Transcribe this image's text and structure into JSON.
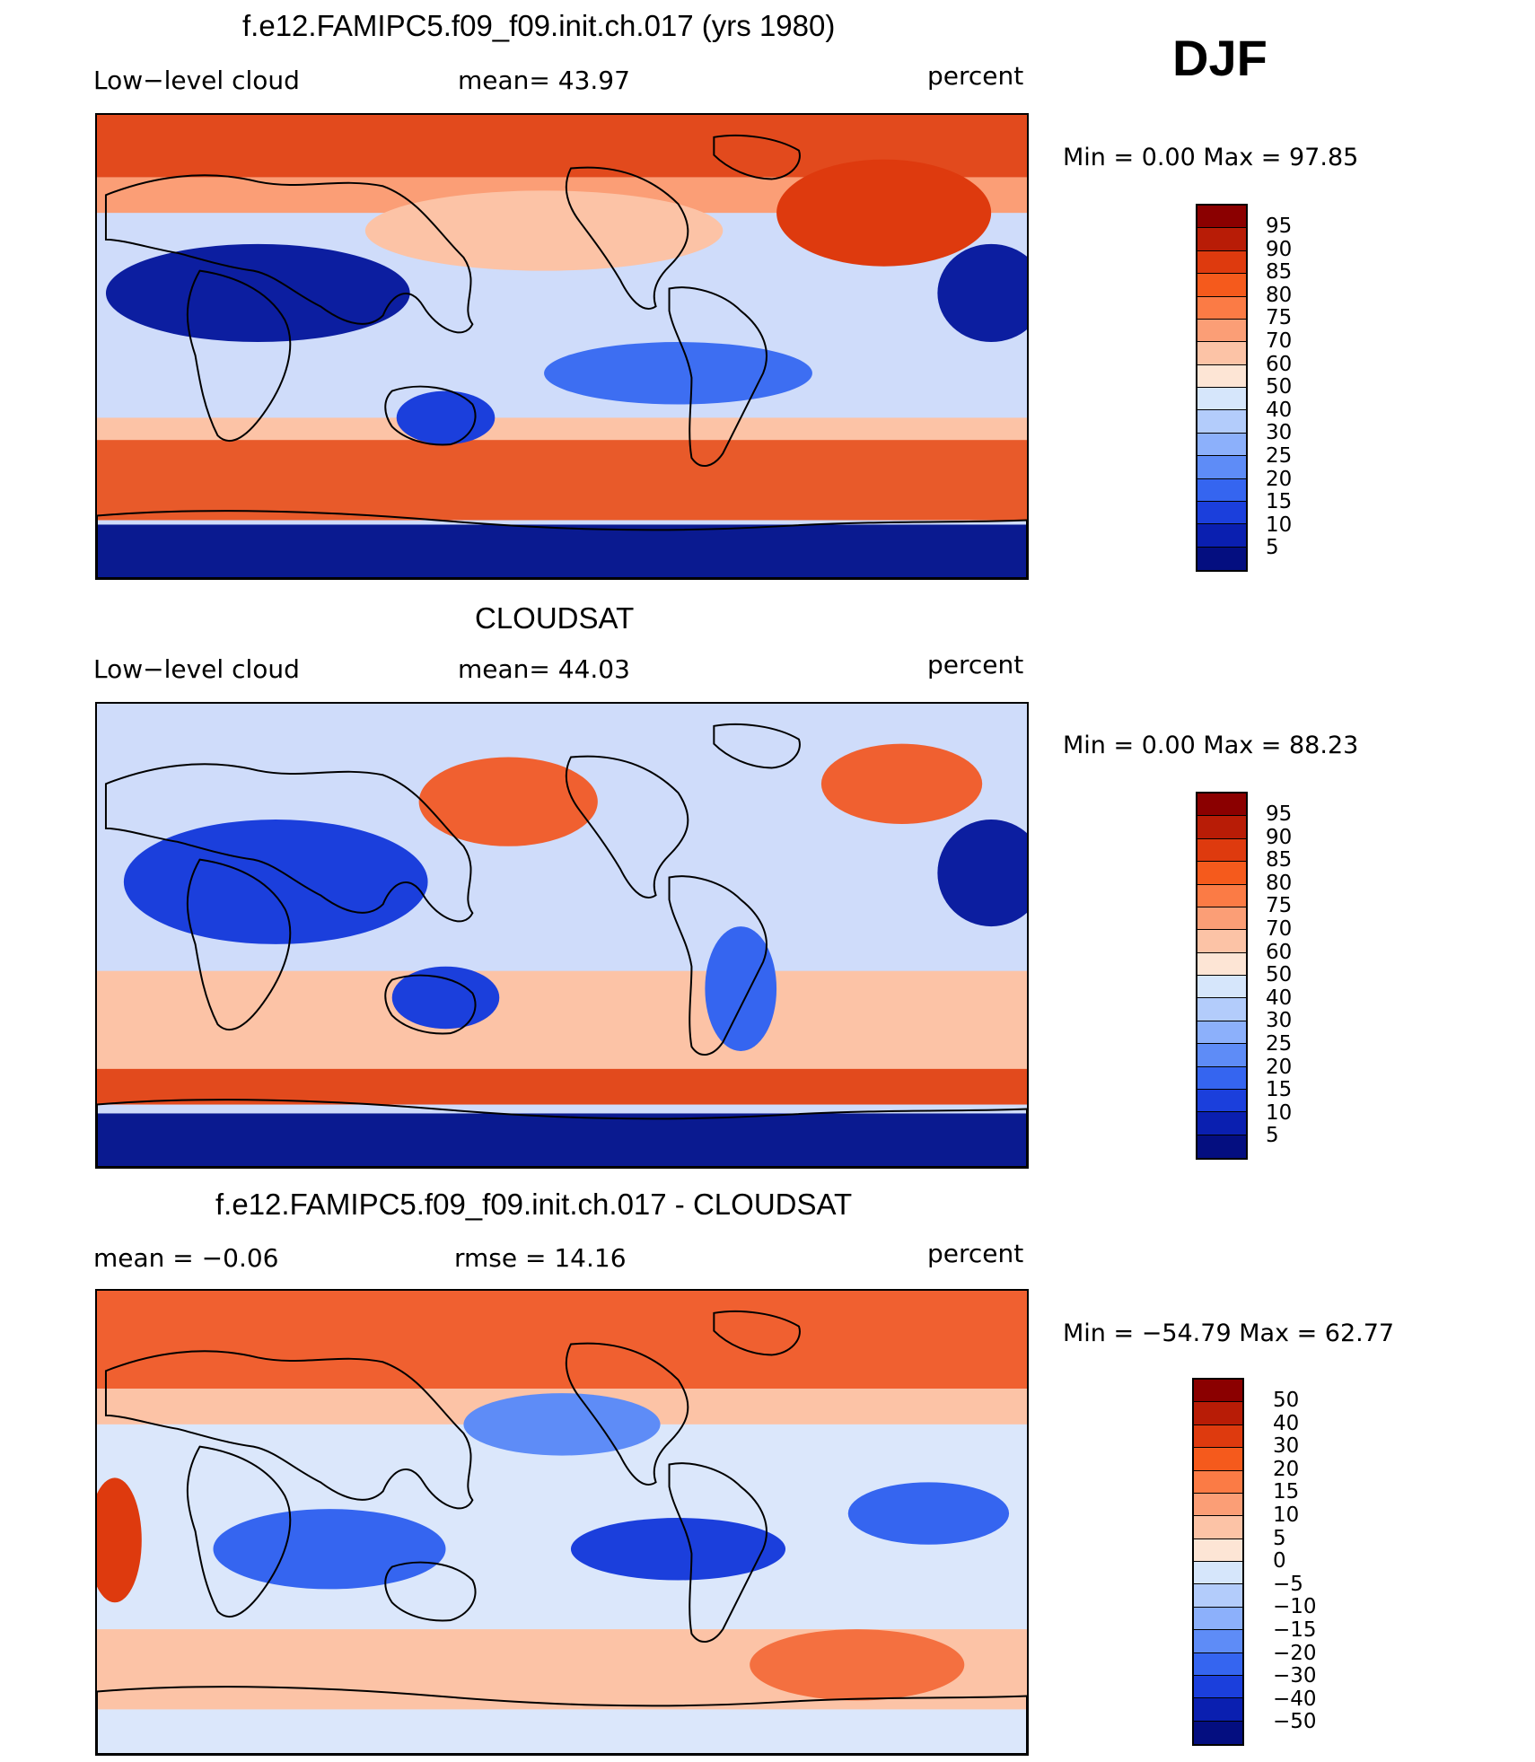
{
  "header": {
    "season": "DJF"
  },
  "panels": [
    {
      "title": "f.e12.FAMIPC5.f09_f09.init.ch.017 (yrs 1980)",
      "left_label": "Low−level cloud",
      "mid_label": "mean=   43.97",
      "right_label": "percent",
      "minmax": "Min  =     0.00  Max  =    97.85",
      "colorbar_labels": [
        "95",
        "90",
        "85",
        "80",
        "75",
        "70",
        "60",
        "50",
        "40",
        "30",
        "25",
        "20",
        "15",
        "10",
        "5"
      ]
    },
    {
      "title": "CLOUDSAT",
      "left_label": "Low−level cloud",
      "mid_label": "mean=   44.03",
      "right_label": "percent",
      "minmax": "Min  =     0.00  Max  =    88.23",
      "colorbar_labels": [
        "95",
        "90",
        "85",
        "80",
        "75",
        "70",
        "60",
        "50",
        "40",
        "30",
        "25",
        "20",
        "15",
        "10",
        "5"
      ]
    },
    {
      "title": "f.e12.FAMIPC5.f09_f09.init.ch.017 - CLOUDSAT",
      "left_label": "mean  =    −0.06",
      "mid_label": "rmse  =    14.16",
      "right_label": "percent",
      "minmax": "Min  = −54.79  Max  =    62.77",
      "colorbar_labels": [
        "50",
        "40",
        "30",
        "20",
        "15",
        "10",
        "5",
        "0",
        "−5",
        "−10",
        "−15",
        "−20",
        "−30",
        "−40",
        "−50"
      ]
    }
  ],
  "colors": {
    "palette": [
      "#8b0000",
      "#b81c06",
      "#de3a0e",
      "#f55a1c",
      "#fb7b45",
      "#fb9e76",
      "#fcc3a6",
      "#fde5d5",
      "#d6e6fb",
      "#b3ccfb",
      "#8cb0fb",
      "#5e8cf7",
      "#3565f0",
      "#1b3fdc",
      "#0a1fb0",
      "#040e80"
    ]
  }
}
